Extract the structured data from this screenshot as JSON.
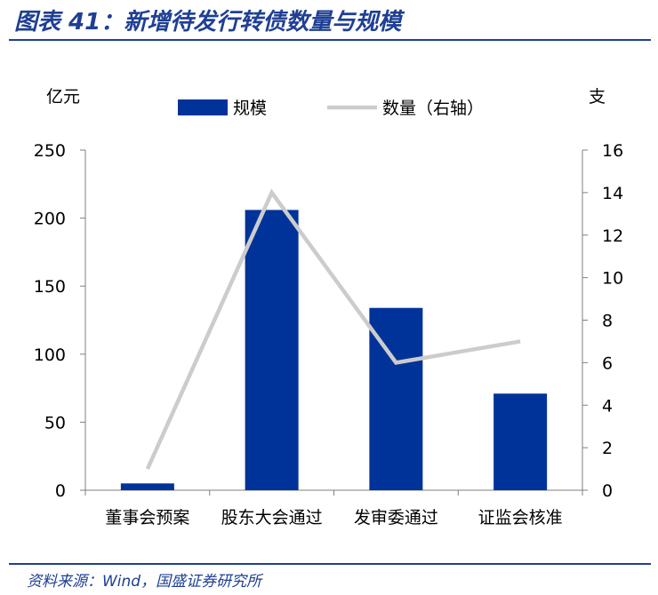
{
  "header": {
    "title": "图表 41：新增待发行转债数量与规模"
  },
  "footer": {
    "source": "资料来源：Wind，国盛证券研究所"
  },
  "colors": {
    "bar": "#003399",
    "line": "#cccccc",
    "axis": "#7f7f7f",
    "title": "#1f3f94"
  },
  "chart_data": {
    "type": "bar",
    "title": "",
    "categories": [
      "董事会预案",
      "股东大会通过",
      "发审委通过",
      "证监会核准"
    ],
    "series": [
      {
        "name": "规模",
        "type": "bar",
        "axis": "left",
        "values": [
          5,
          206,
          134,
          71
        ]
      },
      {
        "name": "数量（右轴）",
        "type": "line",
        "axis": "right",
        "values": [
          1,
          14,
          6,
          7
        ]
      }
    ],
    "ylabel": "亿元",
    "y2label": "支",
    "ylim": [
      0,
      250
    ],
    "y2lim": [
      0,
      16
    ],
    "yticks": [
      "0",
      "50",
      "100",
      "150",
      "200",
      "250"
    ],
    "y2ticks": [
      "0",
      "2",
      "4",
      "6",
      "8",
      "10",
      "12",
      "14",
      "16"
    ],
    "legend": "top-center",
    "grid": false
  }
}
